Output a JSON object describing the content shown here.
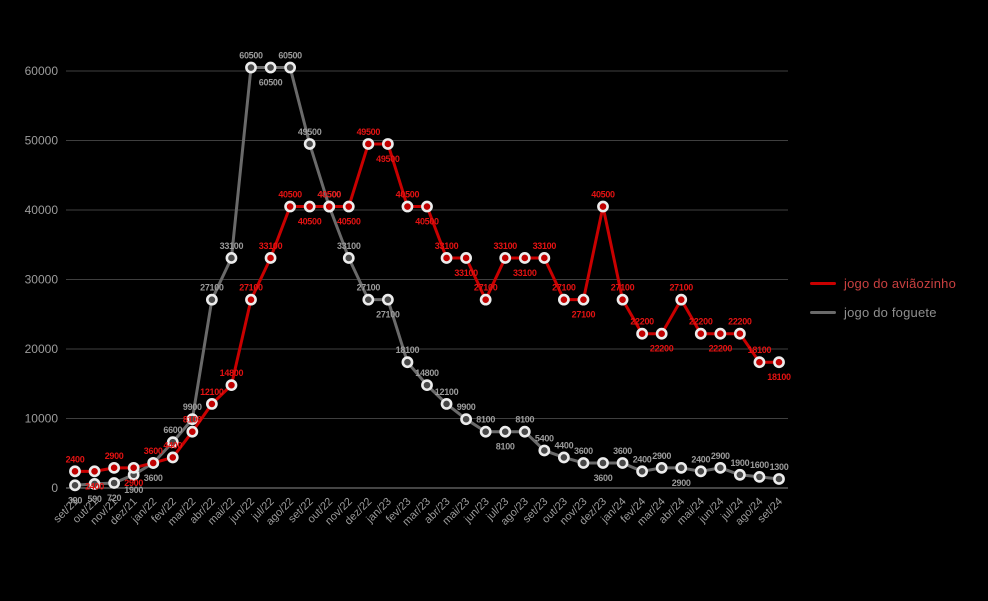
{
  "chart_data": {
    "type": "line",
    "title": "",
    "xlabel": "",
    "ylabel": "",
    "x": [
      "set/21",
      "out/21",
      "nov/21",
      "dez/21",
      "jan/22",
      "fev/22",
      "mar/22",
      "abr/22",
      "mai/22",
      "jun/22",
      "jul/22",
      "ago/22",
      "set/22",
      "out/22",
      "nov/22",
      "dez/22",
      "jan/23",
      "fev/23",
      "mar/23",
      "abr/23",
      "mai/23",
      "jun/23",
      "jul/23",
      "ago/23",
      "set/23",
      "out/23",
      "nov/23",
      "dez/23",
      "jan/24",
      "fev/24",
      "mar/24",
      "abr/24",
      "mai/24",
      "jun/24",
      "jul/24",
      "ago/24",
      "set/24"
    ],
    "series": [
      {
        "name": "jogo do aviãozinho",
        "line_color": "#c90000",
        "marker_fill": "#c00000",
        "label_color": "#e31212",
        "legend_text_color": "#c94040",
        "values": [
          2400,
          2400,
          2900,
          2900,
          3600,
          4400,
          8100,
          12100,
          14800,
          27100,
          33100,
          40500,
          40500,
          40500,
          40500,
          49500,
          49500,
          40500,
          40500,
          33100,
          33100,
          27100,
          33100,
          33100,
          33100,
          27100,
          27100,
          40500,
          27100,
          22200,
          22200,
          27100,
          22200,
          22200,
          22200,
          18100,
          18100
        ]
      },
      {
        "name": "jogo do foguete",
        "line_color": "#6a6a6a",
        "marker_fill": "#484848",
        "label_color": "#9a9a9a",
        "legend_text_color": "#8f8f8f",
        "values": [
          390,
          590,
          720,
          1900,
          3600,
          6600,
          9900,
          27100,
          33100,
          60500,
          60500,
          60500,
          49500,
          40500,
          33100,
          27100,
          27100,
          18100,
          14800,
          12100,
          9900,
          8100,
          8100,
          8100,
          5400,
          4400,
          3600,
          3600,
          3600,
          2400,
          2900,
          2900,
          2400,
          2900,
          1900,
          1600,
          1300
        ]
      }
    ],
    "ylim": [
      0,
      60000
    ],
    "yticks": [
      0,
      10000,
      20000,
      30000,
      40000,
      50000,
      60000
    ],
    "grid": "horizontal",
    "legend_position": "right",
    "colors": {
      "background": "#000000",
      "gridline": "#3f3f3f",
      "zero_line": "#8a8a8a",
      "tick_text": "#9c9c9c",
      "marker_ring": "#ececec"
    }
  }
}
